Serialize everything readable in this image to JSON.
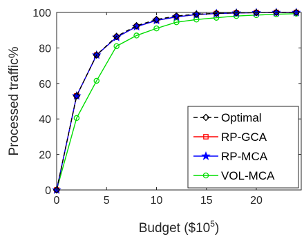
{
  "chart_data": {
    "type": "line",
    "xlabel": "Budget ($10^5)",
    "xlabel_parts": {
      "base": "Budget ($10",
      "exp": "5",
      "tail": ")"
    },
    "ylabel": "Processed traffic%",
    "xlim": [
      0,
      24.5
    ],
    "ylim": [
      0,
      100
    ],
    "xticks": [
      0,
      5,
      10,
      15,
      20
    ],
    "yticks": [
      0,
      20,
      40,
      60,
      80,
      100
    ],
    "grid": false,
    "legend_position": "bottom-right",
    "x": [
      0,
      2,
      4,
      6,
      8,
      10,
      12,
      14,
      16,
      18,
      20,
      22,
      24
    ],
    "series": [
      {
        "name": "Optimal",
        "color": "#000000",
        "dash": "6,4",
        "marker": "diamond",
        "values": [
          0,
          53,
          76,
          86.5,
          92.5,
          96,
          98,
          99,
          99.5,
          99.8,
          99.9,
          100,
          100
        ]
      },
      {
        "name": "RP-GCA",
        "color": "#ff0000",
        "dash": "",
        "marker": "square",
        "values": [
          0,
          53,
          76,
          86,
          92,
          95.5,
          97.5,
          98.8,
          99.4,
          99.7,
          99.9,
          100,
          100
        ]
      },
      {
        "name": "RP-MCA",
        "color": "#0000ff",
        "dash": "",
        "marker": "star",
        "values": [
          0,
          53,
          76,
          86,
          92,
          95.5,
          97.5,
          98.8,
          99.4,
          99.7,
          99.9,
          100,
          100
        ]
      },
      {
        "name": "VOL-MCA",
        "color": "#00dd00",
        "dash": "",
        "marker": "circle",
        "values": [
          0,
          40.5,
          61.5,
          81,
          87,
          91,
          94.5,
          96,
          97,
          98,
          98.5,
          99,
          99.3
        ]
      }
    ]
  }
}
